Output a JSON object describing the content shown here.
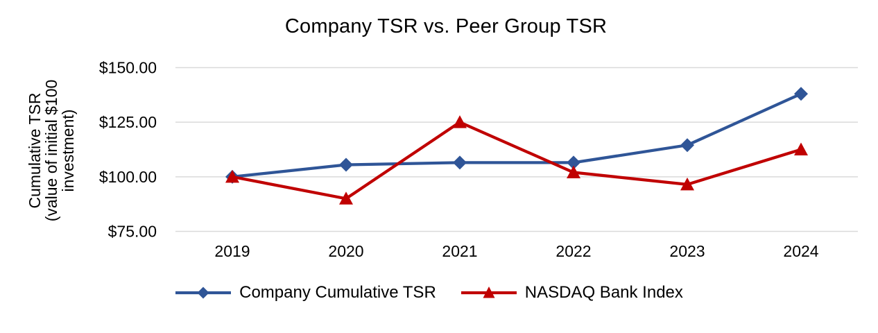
{
  "title": "Company TSR vs. Peer Group TSR",
  "chart_data": {
    "type": "line",
    "title": "Company TSR vs. Peer Group TSR",
    "categories": [
      "2019",
      "2020",
      "2021",
      "2022",
      "2023",
      "2024"
    ],
    "series": [
      {
        "name": "Company Cumulative TSR",
        "color": "#2F5597",
        "marker": "diamond",
        "values": [
          100.0,
          105.5,
          106.5,
          106.5,
          114.5,
          138.0
        ]
      },
      {
        "name": "NASDAQ Bank Index",
        "color": "#C00000",
        "marker": "triangle",
        "values": [
          100.0,
          90.0,
          125.0,
          102.0,
          96.5,
          112.5
        ]
      }
    ],
    "ylabel_lines": [
      "Cumulative TSR",
      "(value of initial $100",
      "investment)"
    ],
    "yticks": [
      75,
      100,
      125,
      150
    ],
    "ytick_labels": [
      "$75.00",
      "$100.00",
      "$125.00",
      "$150.00"
    ],
    "ylim": [
      75,
      150
    ],
    "xlabel": "",
    "grid": "horizontal",
    "grid_color": "#D9D9D9",
    "legend_position": "bottom"
  }
}
